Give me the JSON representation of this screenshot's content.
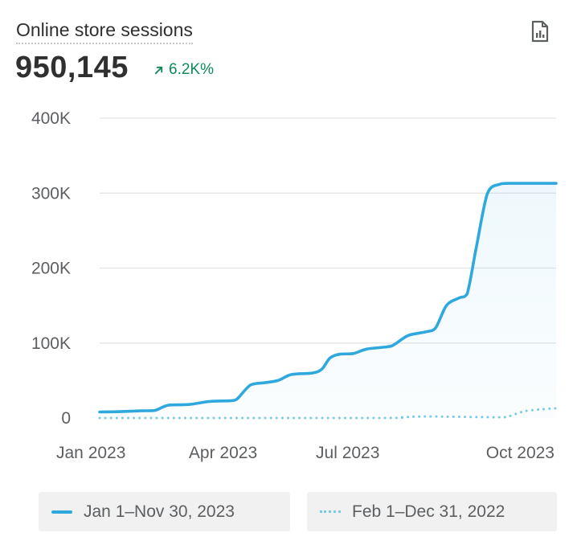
{
  "header": {
    "title": "Online store sessions",
    "value": "950,145",
    "delta": "6.2K%"
  },
  "colors": {
    "primary_series": "#2fa9dd",
    "comparison_series": "#7ccbe6",
    "delta_positive": "#0d8a58",
    "grid": "#e3e3e3"
  },
  "icons": {
    "report": "report-icon",
    "trend": "arrow-up-right-icon"
  },
  "legend": {
    "current": "Jan 1–Nov 30, 2023",
    "previous": "Feb 1–Dec 31, 2022"
  },
  "chart_data": {
    "type": "line",
    "title": "Online store sessions",
    "ylim": [
      0,
      400000
    ],
    "y_ticks": [
      {
        "value": 0,
        "label": "0"
      },
      {
        "value": 100000,
        "label": "100K"
      },
      {
        "value": 200000,
        "label": "200K"
      },
      {
        "value": 300000,
        "label": "300K"
      },
      {
        "value": 400000,
        "label": "400K"
      }
    ],
    "x_range": [
      0,
      333
    ],
    "x_ticks": [
      {
        "value": 0,
        "label": "Jan 2023"
      },
      {
        "value": 90,
        "label": "Apr 2023"
      },
      {
        "value": 181,
        "label": "Jul 2023"
      },
      {
        "value": 273,
        "label": "Oct 2023"
      }
    ],
    "series": [
      {
        "name": "Jan 1–Nov 30, 2023",
        "style": "solid",
        "points": [
          [
            0,
            8000
          ],
          [
            15,
            8500
          ],
          [
            30,
            9500
          ],
          [
            40,
            10000
          ],
          [
            50,
            17000
          ],
          [
            65,
            18000
          ],
          [
            80,
            22000
          ],
          [
            95,
            23000
          ],
          [
            100,
            25000
          ],
          [
            110,
            44000
          ],
          [
            120,
            47000
          ],
          [
            130,
            50000
          ],
          [
            140,
            58000
          ],
          [
            155,
            60000
          ],
          [
            162,
            65000
          ],
          [
            168,
            80000
          ],
          [
            175,
            85000
          ],
          [
            185,
            86000
          ],
          [
            195,
            92000
          ],
          [
            210,
            95000
          ],
          [
            215,
            98000
          ],
          [
            225,
            110000
          ],
          [
            238,
            115000
          ],
          [
            245,
            120000
          ],
          [
            253,
            150000
          ],
          [
            262,
            160000
          ],
          [
            268,
            165000
          ],
          [
            275,
            230000
          ],
          [
            283,
            300000
          ],
          [
            292,
            312000
          ],
          [
            298,
            313000
          ],
          [
            333,
            313000
          ]
        ]
      },
      {
        "name": "Feb 1–Dec 31, 2022",
        "style": "dotted",
        "points": [
          [
            0,
            0
          ],
          [
            200,
            0
          ],
          [
            220,
            1000
          ],
          [
            240,
            2000
          ],
          [
            290,
            1000
          ],
          [
            298,
            2000
          ],
          [
            310,
            9000
          ],
          [
            325,
            12000
          ],
          [
            333,
            13000
          ]
        ]
      }
    ]
  }
}
